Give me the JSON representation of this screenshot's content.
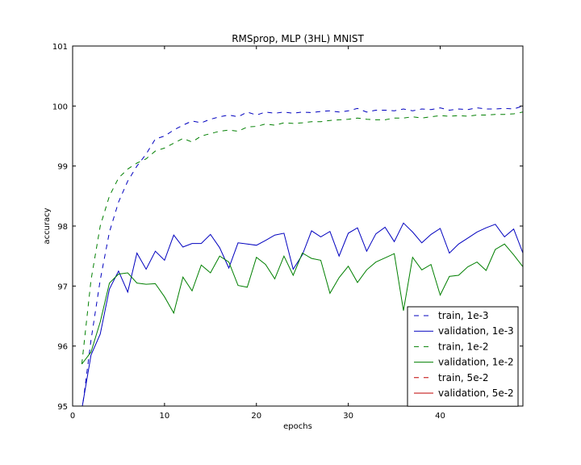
{
  "chart_data": {
    "type": "line",
    "title": "RMSprop, MLP (3HL) MNIST",
    "xlabel": "epochs",
    "ylabel": "accuracy",
    "xlim": [
      0,
      49
    ],
    "ylim": [
      95,
      101
    ],
    "xticks": [
      0,
      10,
      20,
      30,
      40
    ],
    "yticks": [
      95,
      96,
      97,
      98,
      99,
      100,
      101
    ],
    "grid": false,
    "legend_position": "lower-right",
    "series": [
      {
        "name": "train, 1e-3",
        "color": "#0000bf",
        "dash": "dashed",
        "x": [
          1,
          2,
          3,
          4,
          5,
          6,
          7,
          8,
          9,
          10,
          11,
          12,
          13,
          14,
          15,
          16,
          17,
          18,
          19,
          20,
          21,
          22,
          23,
          24,
          25,
          26,
          27,
          28,
          29,
          30,
          31,
          32,
          33,
          34,
          35,
          36,
          37,
          38,
          39,
          40,
          41,
          42,
          43,
          44,
          45,
          46,
          47,
          48,
          49
        ],
        "y": [
          94.9,
          96.1,
          97.1,
          97.9,
          98.4,
          98.75,
          99.0,
          99.2,
          99.45,
          99.5,
          99.6,
          99.68,
          99.75,
          99.72,
          99.78,
          99.82,
          99.85,
          99.82,
          99.9,
          99.85,
          99.9,
          99.88,
          99.9,
          99.88,
          99.9,
          99.89,
          99.91,
          99.92,
          99.9,
          99.92,
          99.96,
          99.9,
          99.93,
          99.93,
          99.92,
          99.95,
          99.92,
          99.95,
          99.94,
          99.97,
          99.93,
          99.95,
          99.94,
          99.97,
          99.95,
          99.95,
          99.96,
          99.95,
          100.0
        ]
      },
      {
        "name": "validation, 1e-3",
        "color": "#0000bf",
        "dash": "solid",
        "x": [
          1,
          2,
          3,
          4,
          5,
          6,
          7,
          8,
          9,
          10,
          11,
          12,
          13,
          14,
          15,
          16,
          17,
          18,
          19,
          20,
          21,
          22,
          23,
          24,
          25,
          26,
          27,
          28,
          29,
          30,
          31,
          32,
          33,
          34,
          35,
          36,
          37,
          38,
          39,
          40,
          41,
          42,
          43,
          44,
          45,
          46,
          47,
          48,
          49
        ],
        "y": [
          94.95,
          95.85,
          96.2,
          96.95,
          97.25,
          96.9,
          97.55,
          97.28,
          97.58,
          97.43,
          97.85,
          97.65,
          97.71,
          97.71,
          97.86,
          97.64,
          97.3,
          97.72,
          97.7,
          97.68,
          97.76,
          97.85,
          97.88,
          97.28,
          97.52,
          97.92,
          97.82,
          97.91,
          97.5,
          97.88,
          97.97,
          97.58,
          97.87,
          97.98,
          97.74,
          98.05,
          97.9,
          97.72,
          97.86,
          97.96,
          97.55,
          97.7,
          97.8,
          97.9,
          97.97,
          98.03,
          97.82,
          97.95,
          97.55
        ]
      },
      {
        "name": "train, 1e-2",
        "color": "#007f00",
        "dash": "dashed",
        "x": [
          1,
          2,
          3,
          4,
          5,
          6,
          7,
          8,
          9,
          10,
          11,
          12,
          13,
          14,
          15,
          16,
          17,
          18,
          19,
          20,
          21,
          22,
          23,
          24,
          25,
          26,
          27,
          28,
          29,
          30,
          31,
          32,
          33,
          34,
          35,
          36,
          37,
          38,
          39,
          40,
          41,
          42,
          43,
          44,
          45,
          46,
          47,
          48,
          49
        ],
        "y": [
          95.7,
          97.1,
          98.0,
          98.5,
          98.8,
          98.95,
          99.05,
          99.12,
          99.25,
          99.3,
          99.38,
          99.46,
          99.4,
          99.5,
          99.54,
          99.58,
          99.6,
          99.58,
          99.65,
          99.66,
          99.7,
          99.68,
          99.72,
          99.71,
          99.72,
          99.74,
          99.74,
          99.76,
          99.77,
          99.78,
          99.8,
          99.78,
          99.77,
          99.77,
          99.8,
          99.8,
          99.82,
          99.8,
          99.82,
          99.84,
          99.83,
          99.84,
          99.83,
          99.85,
          99.85,
          99.86,
          99.86,
          99.87,
          99.9
        ]
      },
      {
        "name": "validation, 1e-2",
        "color": "#007f00",
        "dash": "solid",
        "x": [
          1,
          2,
          3,
          4,
          5,
          6,
          7,
          8,
          9,
          10,
          11,
          12,
          13,
          14,
          15,
          16,
          17,
          18,
          19,
          20,
          21,
          22,
          23,
          24,
          25,
          26,
          27,
          28,
          29,
          30,
          31,
          32,
          33,
          34,
          35,
          36,
          37,
          38,
          39,
          40,
          41,
          42,
          43,
          44,
          45,
          46,
          47,
          48,
          49
        ],
        "y": [
          95.7,
          95.9,
          96.4,
          97.05,
          97.2,
          97.22,
          97.05,
          97.03,
          97.04,
          96.82,
          96.55,
          97.15,
          96.92,
          97.35,
          97.22,
          97.5,
          97.4,
          97.01,
          96.98,
          97.48,
          97.36,
          97.12,
          97.5,
          97.18,
          97.55,
          97.46,
          97.43,
          96.88,
          97.14,
          97.33,
          97.06,
          97.27,
          97.4,
          97.47,
          97.54,
          96.59,
          97.48,
          97.27,
          97.36,
          96.85,
          97.16,
          97.18,
          97.32,
          97.4,
          97.26,
          97.61,
          97.7,
          97.52,
          97.32
        ]
      },
      {
        "name": "train, 5e-2",
        "color": "#bf0000",
        "dash": "dashed",
        "x": [],
        "y": []
      },
      {
        "name": "validation, 5e-2",
        "color": "#bf0000",
        "dash": "solid",
        "x": [],
        "y": []
      }
    ]
  }
}
